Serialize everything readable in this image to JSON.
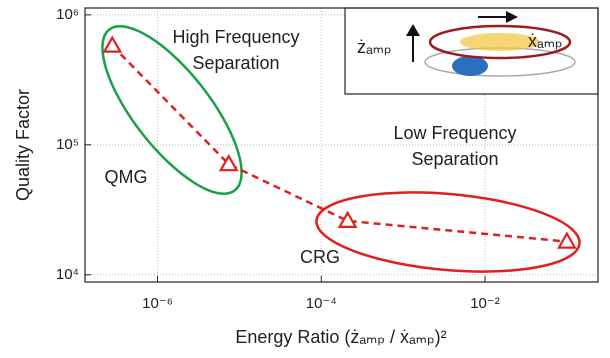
{
  "chart_data": {
    "type": "line",
    "x_label": "Energy Ratio (żₐₘₚ / ẋₐₘₚ)²",
    "y_label": "Quality Factor",
    "x": [
      2.8e-07,
      7.4e-06,
      0.00021,
      0.1
    ],
    "series": [
      {
        "color": "#e02020",
        "values": [
          580000,
          71000,
          26000,
          18000
        ]
      }
    ],
    "xlim": [
      1.3e-07,
      0.24
    ],
    "ylim": [
      8800,
      1130000
    ],
    "xticks": [
      {
        "value": 1e-06,
        "label": "10⁻⁶"
      },
      {
        "value": 0.0001,
        "label": "10⁻⁴"
      },
      {
        "value": 0.01,
        "label": "10⁻²"
      }
    ],
    "yticks": [
      {
        "value": 10000,
        "label": "10⁴"
      },
      {
        "value": 100000,
        "label": "10⁵"
      },
      {
        "value": 1000000,
        "label": "10⁶"
      }
    ],
    "log_x": true,
    "log_y": true,
    "grid": true,
    "annotations": [
      "High Frequency",
      "Separation",
      "Low Frequency",
      "Separation",
      "QMG",
      "CRG"
    ],
    "inset_labels": [
      "żₐₘₚ",
      "ẋₐₘₚ"
    ]
  }
}
